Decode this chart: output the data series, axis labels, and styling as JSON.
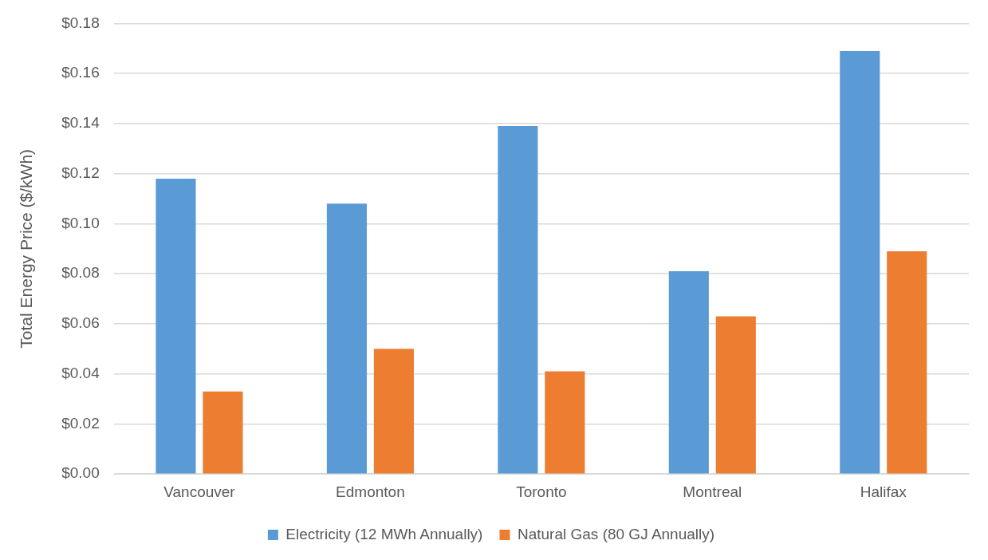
{
  "chart_data": {
    "type": "bar",
    "ylabel": "Total Energy Price ($/kWh)",
    "categories": [
      "Vancouver",
      "Edmonton",
      "Toronto",
      "Montreal",
      "Halifax"
    ],
    "series": [
      {
        "name": "Electricity (12 MWh Annually)",
        "color": "#5b9bd5",
        "values": [
          0.118,
          0.108,
          0.139,
          0.081,
          0.169
        ]
      },
      {
        "name": "Natural Gas (80 GJ Annually)",
        "color": "#ed7d31",
        "values": [
          0.033,
          0.05,
          0.041,
          0.063,
          0.089
        ]
      }
    ],
    "ylim": [
      0,
      0.18
    ],
    "yticks": [
      {
        "value": 0,
        "label": "$0.00"
      },
      {
        "value": 0.02,
        "label": "$0.02"
      },
      {
        "value": 0.04,
        "label": "$0.04"
      },
      {
        "value": 0.06,
        "label": "$0.06"
      },
      {
        "value": 0.08,
        "label": "$0.08"
      },
      {
        "value": 0.1,
        "label": "$0.10"
      },
      {
        "value": 0.12,
        "label": "$0.12"
      },
      {
        "value": 0.14,
        "label": "$0.14"
      },
      {
        "value": 0.16,
        "label": "$0.16"
      },
      {
        "value": 0.18,
        "label": "$0.18"
      }
    ],
    "grid": "y",
    "legend": "bottom"
  }
}
